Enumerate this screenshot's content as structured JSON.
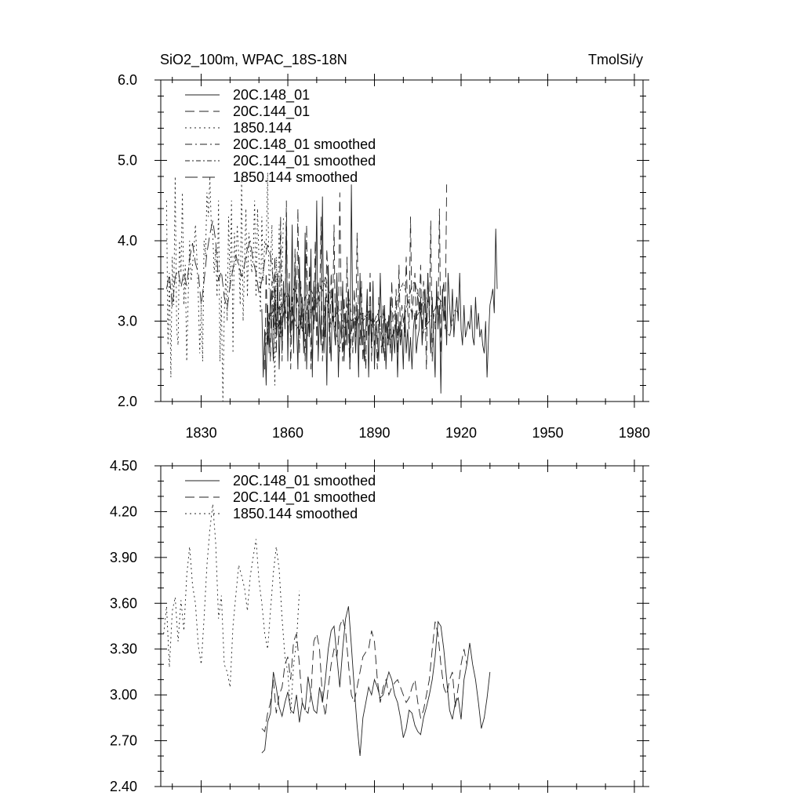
{
  "chart_data": [
    {
      "type": "line",
      "title": "SiO2_100m, WPAC_18S-18N",
      "units": "TmolSi/y",
      "xlabel": "",
      "ylabel": "",
      "xlim": [
        1816,
        1983
      ],
      "ylim": [
        2.0,
        6.0
      ],
      "x_ticks": [
        {
          "v": 1830,
          "label": "1830"
        },
        {
          "v": 1860,
          "label": "1860"
        },
        {
          "v": 1890,
          "label": "1890"
        },
        {
          "v": 1920,
          "label": "1920"
        },
        {
          "v": 1950,
          "label": "1950"
        },
        {
          "v": 1980,
          "label": "1980"
        }
      ],
      "y_ticks": [
        {
          "v": 2.0,
          "label": "2.0"
        },
        {
          "v": 3.0,
          "label": "3.0"
        },
        {
          "v": 4.0,
          "label": "4.0"
        },
        {
          "v": 5.0,
          "label": "5.0"
        },
        {
          "v": 6.0,
          "label": "6.0"
        }
      ],
      "grid": false,
      "legend_position": "top-left",
      "series": [
        {
          "name": "20C.148_01",
          "style": "solid",
          "x_start": 1851,
          "x_step": 0.5,
          "values": [
            3.15,
            2.3,
            2.9,
            2.2,
            3.2,
            2.6,
            3.4,
            2.9,
            2.5,
            3.3,
            2.8,
            3.6,
            2.4,
            3.1,
            2.7,
            3.5,
            2.9,
            4.25,
            2.5,
            3.4,
            2.8,
            4.2,
            2.6,
            3.7,
            3.0,
            2.4,
            3.8,
            2.9,
            3.3,
            2.6,
            4.1,
            2.4,
            3.2,
            2.8,
            3.9,
            2.3,
            3.5,
            3.0,
            4.5,
            2.5,
            3.1,
            2.7,
            4.55,
            2.6,
            3.3,
            2.2,
            3.7,
            2.9,
            2.5,
            3.4,
            2.9,
            2.7,
            3.6,
            2.3,
            3.0,
            2.8,
            3.5,
            2.5,
            3.1,
            2.7,
            3.4,
            2.4,
            4.7,
            2.9,
            3.0,
            2.6,
            3.2,
            2.3,
            3.6,
            2.7,
            3.1,
            2.5,
            2.9,
            3.4,
            2.3,
            3.2,
            2.7,
            3.5,
            2.4,
            3.0,
            2.8,
            2.5,
            3.6,
            2.9,
            2.6,
            3.2,
            2.4,
            3.0,
            2.7,
            3.3,
            2.5,
            2.9,
            2.6,
            3.1,
            2.3,
            3.0,
            2.7,
            2.9,
            2.4,
            3.2,
            2.6,
            2.9,
            2.5,
            2.8,
            2.4,
            2.9,
            3.1,
            2.6,
            2.8,
            2.9,
            3.3,
            2.7,
            3.0,
            3.4,
            2.9,
            3.6,
            3.1,
            2.6,
            3.3,
            2.8,
            2.3,
            3.5,
            2.9,
            3.2,
            2.1,
            3.4,
            3.0,
            3.3,
            2.7,
            3.6,
            3.2,
            2.9,
            3.4,
            2.8,
            3.1,
            3.3,
            3.0,
            3.6,
            2.9,
            2.7,
            3.2,
            2.8,
            2.9,
            3.0,
            2.9,
            3.2,
            2.8,
            2.7,
            3.3,
            2.9,
            3.1,
            2.8,
            2.9,
            2.7,
            2.6,
            3.0,
            2.3,
            2.8,
            3.2,
            3.3,
            3.4,
            3.1,
            4.15,
            3.4
          ]
        },
        {
          "name": "20C.144_01",
          "style": "dashed",
          "x_start": 1852,
          "x_step": 0.5,
          "values": [
            2.4,
            3.6,
            2.7,
            3.1,
            2.5,
            3.5,
            2.9,
            3.8,
            2.6,
            3.2,
            2.8,
            4.3,
            2.5,
            3.4,
            3.0,
            4.5,
            2.8,
            3.6,
            2.4,
            3.3,
            2.7,
            3.9,
            3.0,
            4.4,
            2.6,
            3.5,
            2.9,
            3.1,
            2.5,
            4.2,
            2.8,
            3.7,
            2.4,
            3.3,
            2.9,
            4.0,
            2.7,
            3.5,
            3.1,
            4.3,
            2.5,
            3.2,
            2.8,
            3.9,
            3.4,
            2.6,
            3.6,
            3.0,
            4.2,
            2.7,
            3.5,
            2.9,
            4.6,
            3.1,
            2.5,
            3.3,
            2.7,
            3.8,
            2.9,
            2.4,
            3.0,
            2.6,
            3.4,
            2.8,
            4.1,
            3.0,
            2.7,
            3.5,
            2.5,
            2.9,
            2.4,
            3.2,
            2.8,
            3.6,
            2.5,
            3.1,
            2.7,
            3.0,
            2.4,
            3.3,
            2.9,
            2.6,
            3.2,
            2.5,
            3.0,
            2.7,
            3.1,
            2.6,
            3.5,
            2.8,
            2.9,
            3.4,
            2.6,
            3.7,
            2.8,
            3.2,
            3.0,
            2.8,
            3.8,
            3.1,
            2.9,
            4.3,
            3.0,
            3.3,
            3.6,
            2.9,
            3.4,
            3.1,
            3.7,
            2.8,
            3.5,
            3.2,
            2.4,
            3.6,
            3.0,
            4.25,
            2.5,
            3.1,
            2.9,
            3.3,
            3.0,
            4.4,
            2.6,
            3.3,
            3.5,
            2.9,
            4.7
          ]
        },
        {
          "name": "1850.144",
          "style": "dotted",
          "x_start": 1818,
          "x_step": 0.5,
          "values": [
            4.5,
            2.7,
            3.6,
            2.3,
            3.8,
            3.2,
            4.8,
            2.9,
            2.7,
            4.0,
            3.6,
            4.6,
            3.2,
            3.7,
            2.5,
            3.3,
            4.0,
            3.5,
            3.7,
            3.9,
            4.2,
            3.8,
            3.3,
            2.6,
            3.2,
            2.5,
            4.0,
            3.8,
            4.6,
            4.3,
            4.8,
            4.2,
            4.1,
            3.6,
            3.9,
            3.3,
            4.5,
            2.5,
            3.3,
            2.0,
            3.1,
            3.6,
            3.0,
            4.3,
            3.4,
            4.5,
            2.6,
            4.1,
            3.7,
            4.2,
            3.8,
            3.2,
            4.8,
            3.0,
            3.7,
            4.4,
            3.3,
            4.1,
            3.9,
            3.6,
            3.8,
            4.5,
            3.3,
            4.4,
            3.8,
            3.1,
            4.3,
            3.5,
            4.0,
            3.9,
            4.85,
            3.4,
            3.7,
            4.2,
            3.0,
            2.2,
            3.8,
            3.1,
            4.2,
            2.8,
            3.6,
            4.3
          ]
        },
        {
          "name": "20C.148_01 smoothed",
          "style": "dashdot",
          "x_start": 1852,
          "x_step": 1,
          "values": [
            2.65,
            2.84,
            3.1,
            3.05,
            2.9,
            3.0,
            2.95,
            3.2,
            2.92,
            2.88,
            3.1,
            2.9,
            2.95,
            3.05,
            3.3,
            3.35,
            3.1,
            3.2,
            3.4,
            3.45,
            3.38,
            3.55,
            3.4,
            3.3,
            2.95,
            2.8,
            2.62,
            2.95,
            2.9,
            3.1,
            3.0,
            3.05,
            2.98,
            3.1,
            3.0,
            3.05,
            3.1,
            2.95,
            3.0,
            3.1,
            2.9,
            2.78,
            2.85,
            2.95,
            2.8,
            2.9,
            2.85,
            2.9,
            3.0,
            3.15,
            3.3,
            3.45,
            3.5,
            3.3,
            3.1,
            2.85,
            2.95,
            3.0,
            3.1,
            3.15,
            3.3,
            3.25,
            3.1,
            2.9,
            2.8,
            3.0,
            3.15,
            3.1
          ]
        },
        {
          "name": "20C.144_01 smoothed",
          "style": "dashdot2",
          "x_start": 1852,
          "x_step": 1,
          "values": [
            2.8,
            2.9,
            3.05,
            3.15,
            3.0,
            2.9,
            3.2,
            3.25,
            3.35,
            3.1,
            3.4,
            3.35,
            3.1,
            2.88,
            2.95,
            3.25,
            3.4,
            3.3,
            3.2,
            3.35,
            3.5,
            3.45,
            3.1,
            2.95,
            3.05,
            3.1,
            3.15,
            3.0,
            3.05,
            3.3,
            3.1,
            3.05,
            3.0,
            3.08,
            3.1,
            3.05,
            3.12,
            3.0,
            2.95,
            3.0,
            3.05,
            3.1,
            3.0,
            2.95,
            3.0,
            3.1,
            3.25,
            3.4,
            3.48,
            3.35,
            3.2,
            3.1,
            3.05,
            3.08,
            3.15,
            3.25,
            3.3,
            3.2
          ]
        },
        {
          "name": "1850.144 smoothed",
          "style": "longdash",
          "x_start": 1818,
          "x_step": 1,
          "values": [
            3.4,
            3.58,
            3.18,
            3.55,
            3.64,
            3.42,
            3.61,
            3.44,
            3.78,
            3.97,
            3.72,
            3.6,
            3.2,
            3.5,
            3.85,
            4.08,
            4.25,
            4.0,
            3.5,
            3.62,
            3.3,
            3.15,
            3.45,
            3.65,
            3.82,
            3.7,
            3.55,
            3.7,
            3.9,
            4.0,
            3.75,
            3.6,
            3.35,
            3.5,
            3.75,
            3.95,
            3.82,
            3.5,
            3.25,
            3.15,
            3.2,
            3.35
          ]
        }
      ]
    },
    {
      "type": "line",
      "title": "",
      "xlabel": "",
      "ylabel": "",
      "xlim": [
        1816,
        1983
      ],
      "ylim": [
        2.4,
        4.5
      ],
      "x_ticks": [
        {
          "v": 1830,
          "label": ""
        },
        {
          "v": 1860,
          "label": ""
        },
        {
          "v": 1890,
          "label": ""
        },
        {
          "v": 1920,
          "label": ""
        },
        {
          "v": 1950,
          "label": ""
        },
        {
          "v": 1980,
          "label": ""
        }
      ],
      "y_ticks": [
        {
          "v": 2.4,
          "label": "2.40"
        },
        {
          "v": 2.7,
          "label": "2.70"
        },
        {
          "v": 3.0,
          "label": "3.00"
        },
        {
          "v": 3.3,
          "label": "3.30"
        },
        {
          "v": 3.6,
          "label": "3.60"
        },
        {
          "v": 3.9,
          "label": "3.90"
        },
        {
          "v": 4.2,
          "label": "4.20"
        },
        {
          "v": 4.5,
          "label": "4.50"
        }
      ],
      "grid": false,
      "legend_position": "top-left",
      "series": [
        {
          "name": "20C.148_01 smoothed",
          "style": "solid",
          "x_start": 1851,
          "x_step": 1,
          "values": [
            2.62,
            2.64,
            2.82,
            2.88,
            3.15,
            3.05,
            2.92,
            2.86,
            2.95,
            3.02,
            2.9,
            2.88,
            3.0,
            2.82,
            2.95,
            2.9,
            3.12,
            3.0,
            2.9,
            2.88,
            3.05,
            2.95,
            3.1,
            3.3,
            3.42,
            3.45,
            3.25,
            3.05,
            3.3,
            3.5,
            3.58,
            3.32,
            3.05,
            2.8,
            2.6,
            2.85,
            2.95,
            3.05,
            3.0,
            3.1,
            3.05,
            2.98,
            3.0,
            3.08,
            3.15,
            3.1,
            3.0,
            2.95,
            2.85,
            2.72,
            2.78,
            2.9,
            2.88,
            2.8,
            2.76,
            2.74,
            2.85,
            2.92,
            3.0,
            3.1,
            3.25,
            3.48,
            3.45,
            3.3,
            3.1,
            2.9,
            2.84,
            2.95,
            2.98,
            2.84,
            3.1,
            3.2,
            3.34,
            3.2,
            3.1,
            2.95,
            2.78,
            2.85,
            2.98,
            3.15
          ]
        },
        {
          "name": "20C.144_01 smoothed",
          "style": "dashed",
          "x_start": 1851,
          "x_step": 1,
          "values": [
            2.78,
            2.76,
            2.88,
            2.95,
            3.1,
            2.88,
            3.0,
            3.05,
            3.2,
            3.25,
            3.1,
            3.35,
            3.4,
            3.2,
            2.95,
            2.9,
            2.88,
            3.0,
            3.35,
            3.4,
            3.3,
            2.98,
            2.86,
            3.05,
            3.2,
            3.3,
            3.25,
            3.45,
            3.5,
            3.42,
            3.2,
            3.0,
            2.95,
            3.05,
            3.15,
            3.25,
            3.28,
            3.3,
            3.42,
            3.35,
            3.1,
            2.95,
            3.05,
            3.1,
            3.0,
            3.05,
            3.08,
            3.1,
            3.05,
            3.0,
            2.95,
            2.98,
            3.05,
            3.1,
            2.95,
            2.85,
            2.9,
            3.0,
            3.1,
            3.3,
            3.48,
            3.4,
            3.2,
            3.05,
            3.0,
            3.1,
            3.15,
            2.92,
            3.05,
            3.2,
            3.3,
            3.2
          ]
        },
        {
          "name": "1850.144 smoothed",
          "style": "dotted",
          "x_start": 1817,
          "x_step": 1,
          "values": [
            3.4,
            3.58,
            3.18,
            3.55,
            3.64,
            3.35,
            3.62,
            3.42,
            3.78,
            3.97,
            3.72,
            3.6,
            3.32,
            3.2,
            3.5,
            3.85,
            4.08,
            4.25,
            4.0,
            3.5,
            3.65,
            3.2,
            3.15,
            3.05,
            3.45,
            3.65,
            3.85,
            3.78,
            3.7,
            3.55,
            3.78,
            3.9,
            4.02,
            3.75,
            3.6,
            3.4,
            3.3,
            3.55,
            3.8,
            3.97,
            3.82,
            3.5,
            3.25,
            3.15,
            2.88,
            3.2,
            3.35,
            3.68
          ]
        }
      ]
    }
  ]
}
